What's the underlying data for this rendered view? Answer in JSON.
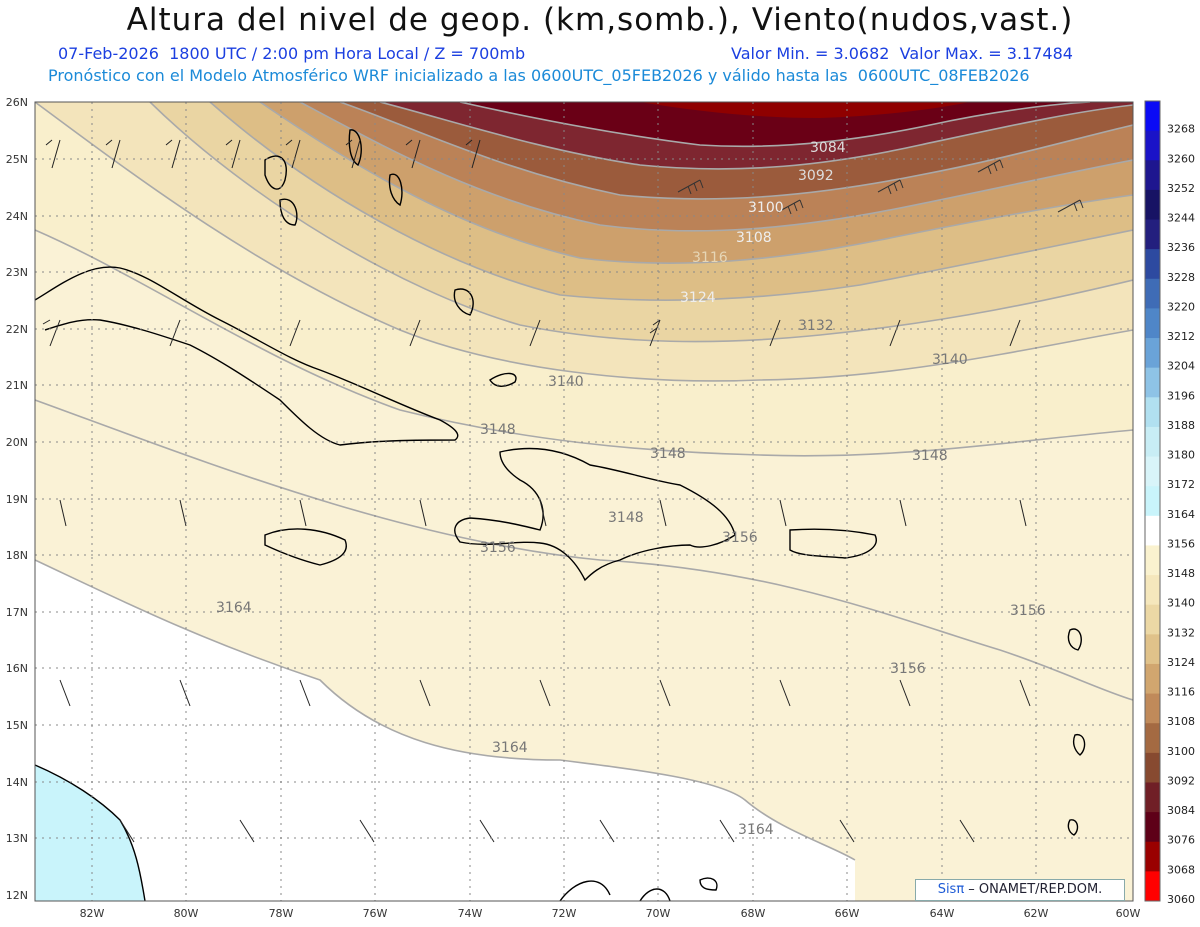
{
  "header": {
    "title": "Altura del nivel de geop. (km,somb.), Viento(nudos,vast.)",
    "line1_left": "07-Feb-2026  1800 UTC / 2:00 pm Hora Local / Z = 700mb",
    "line1_right": "Valor Min. = 3.0682  Valor Max. = 3.17484",
    "line2": "Pronóstico con el Modelo Atmosférico WRF inicializado a las 0600UTC_05FEB2026 y válido hasta las  0600UTC_08FEB2026"
  },
  "map": {
    "lat_labels": [
      "26N",
      "25N",
      "24N",
      "23N",
      "22N",
      "21N",
      "20N",
      "19N",
      "18N",
      "17N",
      "16N",
      "15N",
      "14N",
      "13N",
      "12N"
    ],
    "lon_labels": [
      "82W",
      "80W",
      "78W",
      "76W",
      "74W",
      "72W",
      "70W",
      "68W",
      "66W",
      "64W",
      "62W",
      "60W"
    ],
    "contour_labels": [
      "3084",
      "3092",
      "3100",
      "3108",
      "3116",
      "3124",
      "3132",
      "3140",
      "3140",
      "3148",
      "3148",
      "3148",
      "3148",
      "3156",
      "3156",
      "3156",
      "3156",
      "3164",
      "3164",
      "3164"
    ],
    "fill_colors": {
      "low_dark": "#6e0014",
      "mid_brown": "#b07a4c",
      "tan": "#e2c896",
      "light": "#f8f0d2",
      "ocean_cyan": "#c9f4fb"
    }
  },
  "colorbar": {
    "labels": [
      "3268",
      "3260",
      "3252",
      "3244",
      "3236",
      "3228",
      "3220",
      "3212",
      "3204",
      "3196",
      "3188",
      "3180",
      "3172",
      "3164",
      "3156",
      "3148",
      "3140",
      "3132",
      "3124",
      "3116",
      "3108",
      "3100",
      "3092",
      "3084",
      "3076",
      "3068",
      "3060"
    ],
    "colors": [
      "#0a0af5",
      "#1a13c8",
      "#1e168f",
      "#171364",
      "#231f7e",
      "#2d4aa0",
      "#3f6cb6",
      "#4f86c8",
      "#6aa3d8",
      "#8ec3e6",
      "#b1e0f0",
      "#c8edf5",
      "#d8f4f9",
      "#c9f4fb",
      "#ffffff",
      "#faf2cf",
      "#f5e7bc",
      "#ecd8a5",
      "#e0c28a",
      "#d1a66f",
      "#c08a5a",
      "#a46a42",
      "#874a30",
      "#701f26",
      "#5e0018",
      "#9a0000",
      "#ff0000"
    ]
  },
  "credit": {
    "sis": "Sisπ",
    "rest": " – ONAMET/REP.DOM."
  }
}
